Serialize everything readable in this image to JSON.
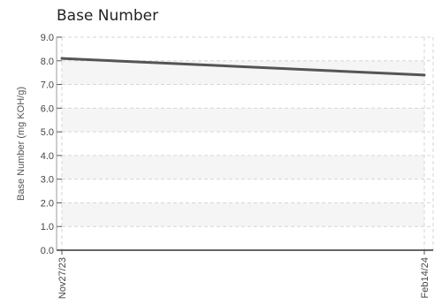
{
  "chart_data": {
    "type": "line",
    "title": "Base Number",
    "ylabel": "Base Number (mg KOH/g)",
    "xlabel": "",
    "ylim": [
      0,
      9
    ],
    "yticks": [
      "0.0",
      "1.0",
      "2.0",
      "3.0",
      "4.0",
      "5.0",
      "6.0",
      "7.0",
      "8.0",
      "9.0"
    ],
    "categories": [
      "Nov27/23",
      "Feb14/24"
    ],
    "series": [
      {
        "values": [
          8.1,
          7.4
        ]
      }
    ],
    "grid": true,
    "line_color": "#555555"
  }
}
